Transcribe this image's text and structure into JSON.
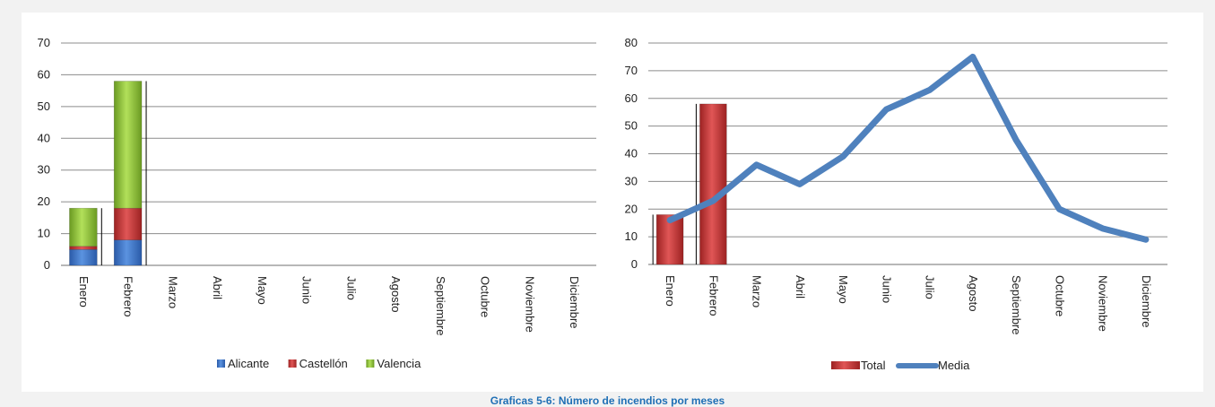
{
  "caption": "Graficas 5-6: Número de incendios por meses",
  "colors": {
    "alicante": "#3b73c5",
    "castellon": "#c93434",
    "valencia": "#8cbf3a",
    "total": "#c93434",
    "media": "#4f81bd",
    "grid": "#8c8c8c"
  },
  "chart_data": [
    {
      "type": "bar",
      "stacked": true,
      "categories": [
        "Enero",
        "Febrero",
        "Marzo",
        "Abril",
        "Mayo",
        "Junio",
        "Julio",
        "Agosto",
        "Septiembre",
        "Octubre",
        "Noviembre",
        "Diciembre"
      ],
      "series": [
        {
          "name": "Alicante",
          "values": [
            5,
            8,
            null,
            null,
            null,
            null,
            null,
            null,
            null,
            null,
            null,
            null
          ]
        },
        {
          "name": "Castellón",
          "values": [
            1,
            10,
            null,
            null,
            null,
            null,
            null,
            null,
            null,
            null,
            null,
            null
          ]
        },
        {
          "name": "Valencia",
          "values": [
            12,
            40,
            null,
            null,
            null,
            null,
            null,
            null,
            null,
            null,
            null,
            null
          ]
        }
      ],
      "ylim": [
        0,
        70
      ],
      "yticks": [
        0,
        10,
        20,
        30,
        40,
        50,
        60,
        70
      ],
      "grid": true,
      "legend": "bottom"
    },
    {
      "type": "bar+line",
      "categories": [
        "Enero",
        "Febrero",
        "Marzo",
        "Abril",
        "Mayo",
        "Junio",
        "Julio",
        "Agosto",
        "Septiembre",
        "Octubre",
        "Noviembre",
        "Diciembre"
      ],
      "series": [
        {
          "name": "Total",
          "type": "bar",
          "values": [
            18,
            58,
            null,
            null,
            null,
            null,
            null,
            null,
            null,
            null,
            null,
            null
          ]
        },
        {
          "name": "Media",
          "type": "line",
          "values": [
            16,
            23,
            36,
            29,
            39,
            56,
            63,
            75,
            45,
            20,
            13,
            9
          ]
        }
      ],
      "ylim": [
        0,
        80
      ],
      "yticks": [
        0,
        10,
        20,
        30,
        40,
        50,
        60,
        70,
        80
      ],
      "grid": true,
      "legend": "bottom"
    }
  ]
}
